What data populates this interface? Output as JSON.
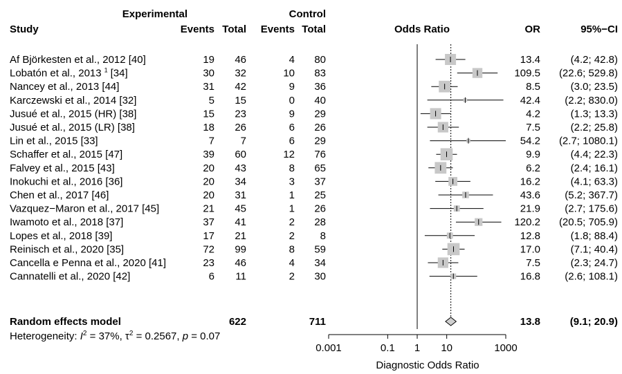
{
  "chart_data": {
    "type": "forest",
    "headers": {
      "group1": "Experimental",
      "group2": "Control",
      "study": "Study",
      "events1": "Events",
      "total1": "Total",
      "events2": "Events",
      "total2": "Total",
      "plot": "Odds Ratio",
      "or": "OR",
      "ci": "95%−CI"
    },
    "studies": [
      {
        "name": "Af Björkesten et al., 2012  [40]",
        "e1": "19",
        "t1": "46",
        "e2": "4",
        "t2": "80",
        "or_label": "13.4",
        "ci_label": "(4.2;  42.8)",
        "or": 13.4,
        "lo": 4.2,
        "hi": 42.8,
        "weight": 1.0
      },
      {
        "name": "Lobatón et al., 2013",
        "sup": "1",
        "ref": "[34]",
        "e1": "30",
        "t1": "32",
        "e2": "10",
        "t2": "83",
        "or_label": "109.5",
        "ci_label": "(22.6; 529.8)",
        "or": 109.5,
        "lo": 22.6,
        "hi": 529.8,
        "weight": 0.9
      },
      {
        "name": "Nancey et al., 2013  [44]",
        "e1": "31",
        "t1": "42",
        "e2": "9",
        "t2": "36",
        "or_label": "8.5",
        "ci_label": "(3.0;  23.5)",
        "or": 8.5,
        "lo": 3.0,
        "hi": 23.5,
        "weight": 1.05
      },
      {
        "name": "Karczewski et al., 2014  [32]",
        "e1": "5",
        "t1": "15",
        "e2": "0",
        "t2": "40",
        "or_label": "42.4",
        "ci_label": "(2.2; 830.0)",
        "or": 42.4,
        "lo": 2.2,
        "hi": 830.0,
        "weight": 0.35
      },
      {
        "name": "Jusué et al., 2015 (HR)  [38]",
        "e1": "15",
        "t1": "23",
        "e2": "9",
        "t2": "29",
        "or_label": "4.2",
        "ci_label": "(1.3;  13.3)",
        "or": 4.2,
        "lo": 1.3,
        "hi": 13.3,
        "weight": 1.0
      },
      {
        "name": "Jusué et al., 2015 (LR)  [38]",
        "e1": "18",
        "t1": "26",
        "e2": "6",
        "t2": "26",
        "or_label": "7.5",
        "ci_label": "(2.2;  25.8)",
        "or": 7.5,
        "lo": 2.2,
        "hi": 25.8,
        "weight": 0.95
      },
      {
        "name": "Lin et al., 2015  [33]",
        "e1": "7",
        "t1": "7",
        "e2": "6",
        "t2": "29",
        "or_label": "54.2",
        "ci_label": "(2.7; 1080.1)",
        "or": 54.2,
        "lo": 2.7,
        "hi": 1080.1,
        "weight": 0.35
      },
      {
        "name": "Schaffer et al., 2015  [47]",
        "e1": "39",
        "t1": "60",
        "e2": "12",
        "t2": "76",
        "or_label": "9.9",
        "ci_label": "(4.4;  22.3)",
        "or": 9.9,
        "lo": 4.4,
        "hi": 22.3,
        "weight": 1.1
      },
      {
        "name": "Falvey et al., 2015  [43]",
        "e1": "20",
        "t1": "43",
        "e2": "8",
        "t2": "65",
        "or_label": "6.2",
        "ci_label": "(2.4;  16.1)",
        "or": 6.2,
        "lo": 2.4,
        "hi": 16.1,
        "weight": 1.05
      },
      {
        "name": "Inokuchi et al., 2016  [36]",
        "e1": "20",
        "t1": "34",
        "e2": "3",
        "t2": "37",
        "or_label": "16.2",
        "ci_label": "(4.1;  63.3)",
        "or": 16.2,
        "lo": 4.1,
        "hi": 63.3,
        "weight": 0.8
      },
      {
        "name": "Chen et al., 2017  [46]",
        "e1": "20",
        "t1": "31",
        "e2": "1",
        "t2": "25",
        "or_label": "43.6",
        "ci_label": "(5.2; 367.7)",
        "or": 43.6,
        "lo": 5.2,
        "hi": 367.7,
        "weight": 0.6
      },
      {
        "name": "Vazquez−Maron et al., 2017  [45]",
        "e1": "21",
        "t1": "45",
        "e2": "1",
        "t2": "26",
        "or_label": "21.9",
        "ci_label": "(2.7; 175.6)",
        "or": 21.9,
        "lo": 2.7,
        "hi": 175.6,
        "weight": 0.55
      },
      {
        "name": "Iwamoto et al., 2018  [37]",
        "e1": "37",
        "t1": "41",
        "e2": "2",
        "t2": "28",
        "or_label": "120.2",
        "ci_label": "(20.5; 705.9)",
        "or": 120.2,
        "lo": 20.5,
        "hi": 705.9,
        "weight": 0.7
      },
      {
        "name": "Lopes et al., 2018  [39]",
        "e1": "17",
        "t1": "21",
        "e2": "2",
        "t2": "8",
        "or_label": "12.8",
        "ci_label": "(1.8;  88.4)",
        "or": 12.8,
        "lo": 1.8,
        "hi": 88.4,
        "weight": 0.55
      },
      {
        "name": "Reinisch et al., 2020  [35]",
        "e1": "72",
        "t1": "99",
        "e2": "8",
        "t2": "59",
        "or_label": "17.0",
        "ci_label": "(7.1;  40.4)",
        "or": 17.0,
        "lo": 7.1,
        "hi": 40.4,
        "weight": 1.1
      },
      {
        "name": "Cancella e Penna et al., 2020  [41]",
        "e1": "23",
        "t1": "46",
        "e2": "4",
        "t2": "34",
        "or_label": "7.5",
        "ci_label": "(2.3;  24.7)",
        "or": 7.5,
        "lo": 2.3,
        "hi": 24.7,
        "weight": 0.95
      },
      {
        "name": "Cannatelli et al., 2020  [42]",
        "e1": "6",
        "t1": "11",
        "e2": "2",
        "t2": "30",
        "or_label": "16.8",
        "ci_label": "(2.6; 108.1)",
        "or": 16.8,
        "lo": 2.6,
        "hi": 108.1,
        "weight": 0.5
      }
    ],
    "summary": {
      "name": "Random effects model",
      "t1": "622",
      "t2": "711",
      "or_label": "13.8",
      "ci_label": "(9.1;  20.9)",
      "or": 13.8,
      "lo": 9.1,
      "hi": 20.9
    },
    "heterogeneity": {
      "prefix": "Heterogeneity: ",
      "i2_sym": "I",
      "i2_val": " = 37%, ",
      "tau_sym": "τ",
      "tau_val": " = 0.2567, ",
      "p_sym": "p",
      "p_val": " = 0.07",
      "sup": "2"
    },
    "x_axis": {
      "scale": "log",
      "xlim": [
        0.001,
        1000
      ],
      "ticks": [
        0.001,
        0.1,
        1,
        10,
        1000
      ],
      "tick_labels": [
        "0.001",
        "0.1",
        "1",
        "10",
        "1000"
      ],
      "label": "Diagnostic Odds Ratio",
      "reference_line": 1
    },
    "colors": {
      "box": "#c8c8c8",
      "diamond": "#cfcfcf",
      "line": "#000000"
    }
  }
}
